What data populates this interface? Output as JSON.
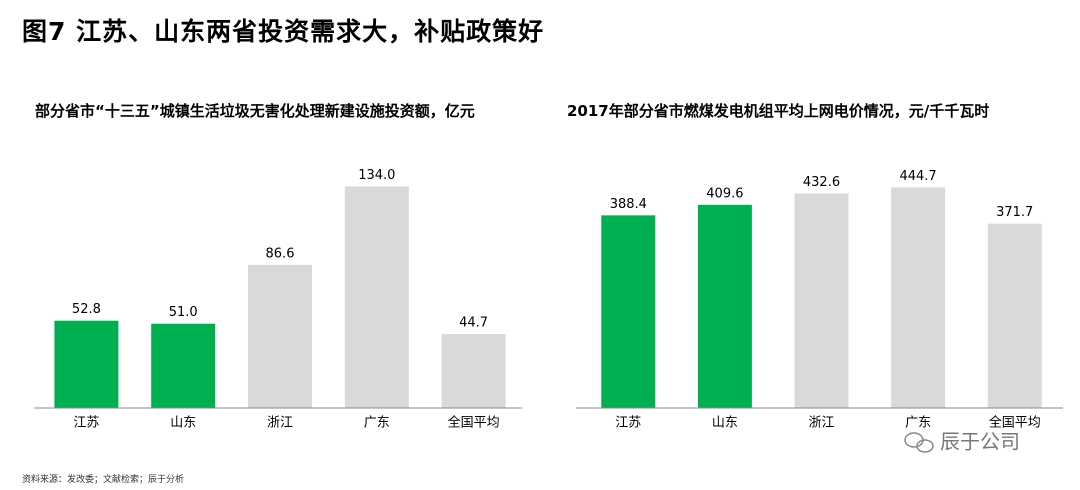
{
  "title": "图7 江苏、山东两省投资需求大，补贴政策好",
  "source": "资料来源：发改委；文献检索；辰于分析",
  "watermark": "辰于公司",
  "chart_data": [
    {
      "type": "bar",
      "title": "部分省市“十三五”城镇生活垃圾无害化处理新建设施投资额，亿元",
      "categories": [
        "江苏",
        "山东",
        "浙江",
        "广东",
        "全国平均"
      ],
      "values": [
        52.8,
        51.0,
        86.6,
        134.0,
        44.7
      ],
      "value_labels": [
        "52.8",
        "51.0",
        "86.6",
        "134.0",
        "44.7"
      ],
      "colors": [
        "#00b050",
        "#00b050",
        "#d9d9d9",
        "#d9d9d9",
        "#d9d9d9"
      ],
      "ylim": [
        0,
        150
      ]
    },
    {
      "type": "bar",
      "title": "2017年部分省市燃煤发电机组平均上网电价情况，元/千千瓦时",
      "categories": [
        "江苏",
        "山东",
        "浙江",
        "广东",
        "全国平均"
      ],
      "values": [
        388.4,
        409.6,
        432.6,
        444.7,
        371.7
      ],
      "colors": [
        "#00b050",
        "#00b050",
        "#d9d9d9",
        "#d9d9d9",
        "#d9d9d9"
      ],
      "ylim": [
        0,
        500
      ]
    }
  ]
}
